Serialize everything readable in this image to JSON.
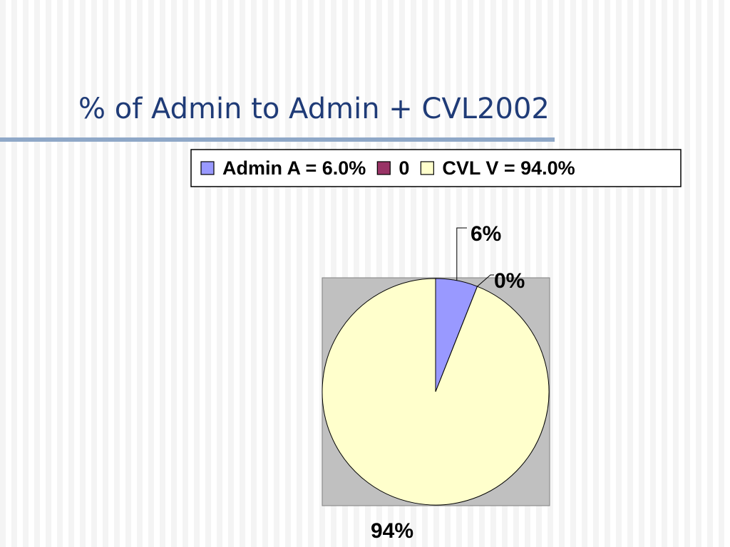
{
  "chart_data": {
    "type": "pie",
    "title": "% of Admin to Admin + CVL2002",
    "categories": [
      "Admin A = 6.0%",
      "0",
      "CVL V = 94.0%"
    ],
    "values": [
      6,
      0,
      94
    ],
    "value_labels": [
      "6%",
      "0%",
      "94%"
    ],
    "colors": [
      "#9999ff",
      "#993366",
      "#ffffcc"
    ],
    "legend": "top"
  }
}
